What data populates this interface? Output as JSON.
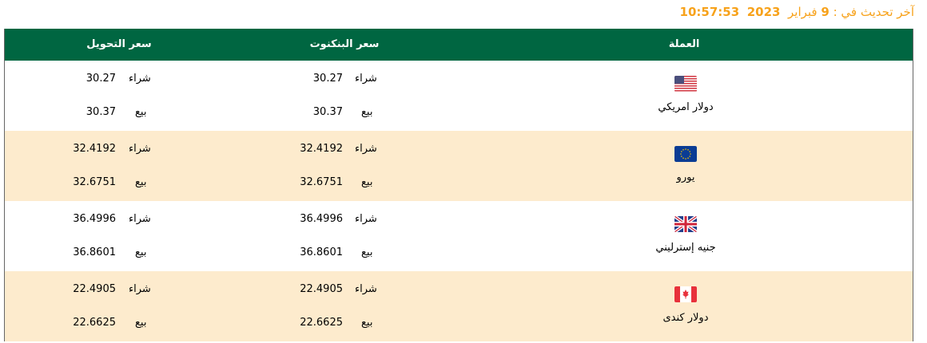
{
  "last_update": {
    "label": "آخر تحديث في :",
    "day": "9",
    "month": "فبراير",
    "year": "2023",
    "time": "10:57:53"
  },
  "colors": {
    "header_bg": "#006641",
    "accent": "#f7a21b",
    "alt_row": "#fdebcd"
  },
  "headers": {
    "currency": "العملة",
    "banknote": "سعر البنكنوت",
    "transfer": "سعر التحويل"
  },
  "labels": {
    "buy": "شراء",
    "sell": "بيع"
  },
  "rows": [
    {
      "name": "دولار امريكي",
      "flag": "us-flag-icon",
      "banknote_buy": "30.27",
      "banknote_sell": "30.37",
      "transfer_buy": "30.27",
      "transfer_sell": "30.37"
    },
    {
      "name": "يورو",
      "flag": "eu-flag-icon",
      "banknote_buy": "32.4192",
      "banknote_sell": "32.6751",
      "transfer_buy": "32.4192",
      "transfer_sell": "32.6751"
    },
    {
      "name": "جنيه إسترليني",
      "flag": "uk-flag-icon",
      "banknote_buy": "36.4996",
      "banknote_sell": "36.8601",
      "transfer_buy": "36.4996",
      "transfer_sell": "36.8601"
    },
    {
      "name": "دولار كندى",
      "flag": "ca-flag-icon",
      "banknote_buy": "22.4905",
      "banknote_sell": "22.6625",
      "transfer_buy": "22.4905",
      "transfer_sell": "22.6625"
    }
  ]
}
